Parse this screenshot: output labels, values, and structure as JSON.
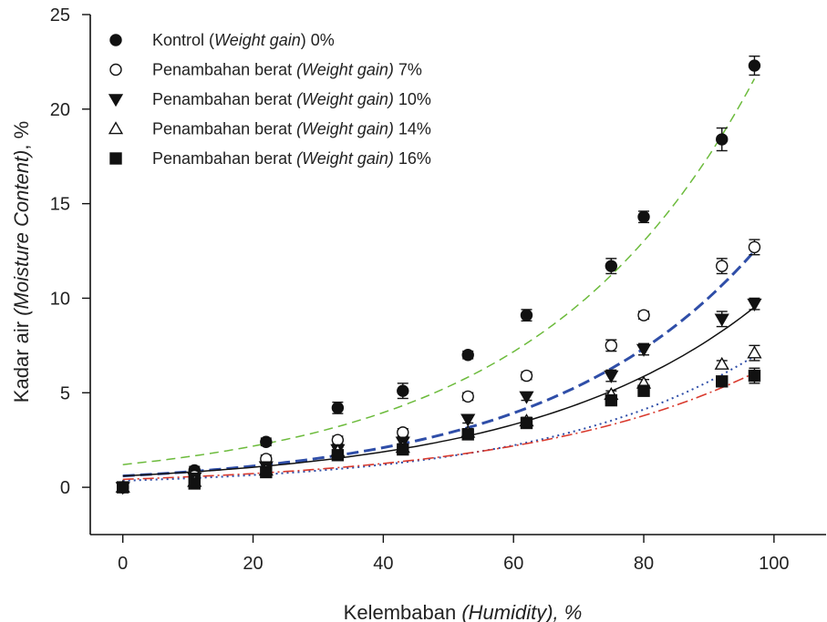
{
  "chart_data": {
    "type": "scatter",
    "title": "",
    "xlabel_parts": [
      "Kelembaban ",
      "(Humidity), %"
    ],
    "ylabel_parts": [
      "Kadar air ",
      "(Moisture Content)",
      ", %"
    ],
    "xlim": [
      -5,
      108
    ],
    "ylim": [
      -2.5,
      25
    ],
    "xticks": [
      0,
      20,
      40,
      60,
      80,
      100
    ],
    "yticks": [
      0,
      5,
      10,
      15,
      20,
      25
    ],
    "grid": false,
    "legend_position": "top-left",
    "series": [
      {
        "name": "Kontrol (Weight gain) 0%",
        "legend_parts": [
          {
            "text": "Kontrol (",
            "italic": false
          },
          {
            "text": "Weight gain",
            "italic": true
          },
          {
            "text": ") 0%",
            "italic": false
          }
        ],
        "marker": "circle-filled",
        "fit_color": "#6cbb3c",
        "fit_style": "dash",
        "fit_curve": {
          "a": 1.2,
          "b": 0.0298
        },
        "points": [
          {
            "x": 0,
            "y": 0.0,
            "err": 0.2
          },
          {
            "x": 11,
            "y": 0.9,
            "err": 0.2
          },
          {
            "x": 22,
            "y": 2.4,
            "err": 0.2
          },
          {
            "x": 33,
            "y": 4.2,
            "err": 0.3
          },
          {
            "x": 43,
            "y": 5.1,
            "err": 0.4
          },
          {
            "x": 53,
            "y": 7.0,
            "err": 0.2
          },
          {
            "x": 62,
            "y": 9.1,
            "err": 0.3
          },
          {
            "x": 75,
            "y": 11.7,
            "err": 0.4
          },
          {
            "x": 80,
            "y": 14.3,
            "err": 0.3
          },
          {
            "x": 92,
            "y": 18.4,
            "err": 0.6
          },
          {
            "x": 97,
            "y": 22.3,
            "err": 0.5
          }
        ]
      },
      {
        "name": "Penambahan berat (Weight gain) 7%",
        "legend_parts": [
          {
            "text": "Penambahan berat ",
            "italic": false
          },
          {
            "text": "(Weight gain)",
            "italic": true
          },
          {
            "text": " 7%",
            "italic": false
          }
        ],
        "marker": "circle-open",
        "fit_color": "#2f4ea8",
        "fit_style": "dash-thick",
        "fit_curve": {
          "a": 0.6,
          "b": 0.0313
        },
        "points": [
          {
            "x": 0,
            "y": 0.0,
            "err": 0.2
          },
          {
            "x": 11,
            "y": 0.6,
            "err": 0.2
          },
          {
            "x": 22,
            "y": 1.5,
            "err": 0.2
          },
          {
            "x": 33,
            "y": 2.5,
            "err": 0.2
          },
          {
            "x": 43,
            "y": 2.9,
            "err": 0.2
          },
          {
            "x": 53,
            "y": 4.8,
            "err": 0.2
          },
          {
            "x": 62,
            "y": 5.9,
            "err": 0.2
          },
          {
            "x": 75,
            "y": 7.5,
            "err": 0.3
          },
          {
            "x": 80,
            "y": 9.1,
            "err": 0.2
          },
          {
            "x": 92,
            "y": 11.7,
            "err": 0.4
          },
          {
            "x": 97,
            "y": 12.7,
            "err": 0.4
          }
        ]
      },
      {
        "name": "Penambahan berat (Weight gain) 10%",
        "legend_parts": [
          {
            "text": "Penambahan berat ",
            "italic": false
          },
          {
            "text": "(Weight gain)",
            "italic": true
          },
          {
            "text": " 10%",
            "italic": false
          }
        ],
        "marker": "triangle-down-filled",
        "fit_color": "#111111",
        "fit_style": "solid",
        "fit_curve": {
          "a": 0.6,
          "b": 0.0285
        },
        "points": [
          {
            "x": 0,
            "y": 0.0,
            "err": 0.2
          },
          {
            "x": 11,
            "y": 0.5,
            "err": 0.2
          },
          {
            "x": 22,
            "y": 1.1,
            "err": 0.2
          },
          {
            "x": 33,
            "y": 2.0,
            "err": 0.2
          },
          {
            "x": 43,
            "y": 2.4,
            "err": 0.2
          },
          {
            "x": 53,
            "y": 3.6,
            "err": 0.2
          },
          {
            "x": 62,
            "y": 4.8,
            "err": 0.2
          },
          {
            "x": 75,
            "y": 5.9,
            "err": 0.3
          },
          {
            "x": 80,
            "y": 7.3,
            "err": 0.3
          },
          {
            "x": 92,
            "y": 8.9,
            "err": 0.4
          },
          {
            "x": 97,
            "y": 9.7,
            "err": 0.3
          }
        ]
      },
      {
        "name": "Penambahan berat (Weight gain) 14%",
        "legend_parts": [
          {
            "text": "Penambahan berat ",
            "italic": false
          },
          {
            "text": "(Weight gain)",
            "italic": true
          },
          {
            "text": " 14%",
            "italic": false
          }
        ],
        "marker": "triangle-up-open",
        "fit_color": "#2f4ea8",
        "fit_style": "dot",
        "fit_curve": {
          "a": 0.35,
          "b": 0.0308
        },
        "points": [
          {
            "x": 0,
            "y": 0.0,
            "err": 0.2
          },
          {
            "x": 11,
            "y": 0.3,
            "err": 0.2
          },
          {
            "x": 22,
            "y": 0.9,
            "err": 0.2
          },
          {
            "x": 33,
            "y": 1.9,
            "err": 0.2
          },
          {
            "x": 43,
            "y": 2.1,
            "err": 0.2
          },
          {
            "x": 53,
            "y": 2.9,
            "err": 0.2
          },
          {
            "x": 62,
            "y": 3.5,
            "err": 0.2
          },
          {
            "x": 75,
            "y": 4.9,
            "err": 0.2
          },
          {
            "x": 80,
            "y": 5.5,
            "err": 0.2
          },
          {
            "x": 92,
            "y": 6.5,
            "err": 0.2
          },
          {
            "x": 97,
            "y": 7.1,
            "err": 0.4
          }
        ]
      },
      {
        "name": "Penambahan berat (Weight gain) 16%",
        "legend_parts": [
          {
            "text": "Penambahan berat ",
            "italic": false
          },
          {
            "text": "(Weight gain)",
            "italic": true
          },
          {
            "text": " 16%",
            "italic": false
          }
        ],
        "marker": "square-filled",
        "fit_color": "#d93a2e",
        "fit_style": "dash-dot",
        "fit_curve": {
          "a": 0.42,
          "b": 0.0275
        },
        "points": [
          {
            "x": 0,
            "y": 0.0,
            "err": 0.2
          },
          {
            "x": 11,
            "y": 0.2,
            "err": 0.2
          },
          {
            "x": 22,
            "y": 0.8,
            "err": 0.2
          },
          {
            "x": 33,
            "y": 1.7,
            "err": 0.2
          },
          {
            "x": 43,
            "y": 2.0,
            "err": 0.2
          },
          {
            "x": 53,
            "y": 2.8,
            "err": 0.2
          },
          {
            "x": 62,
            "y": 3.4,
            "err": 0.2
          },
          {
            "x": 75,
            "y": 4.6,
            "err": 0.2
          },
          {
            "x": 80,
            "y": 5.1,
            "err": 0.2
          },
          {
            "x": 92,
            "y": 5.6,
            "err": 0.2
          },
          {
            "x": 97,
            "y": 5.9,
            "err": 0.4
          }
        ]
      }
    ]
  }
}
